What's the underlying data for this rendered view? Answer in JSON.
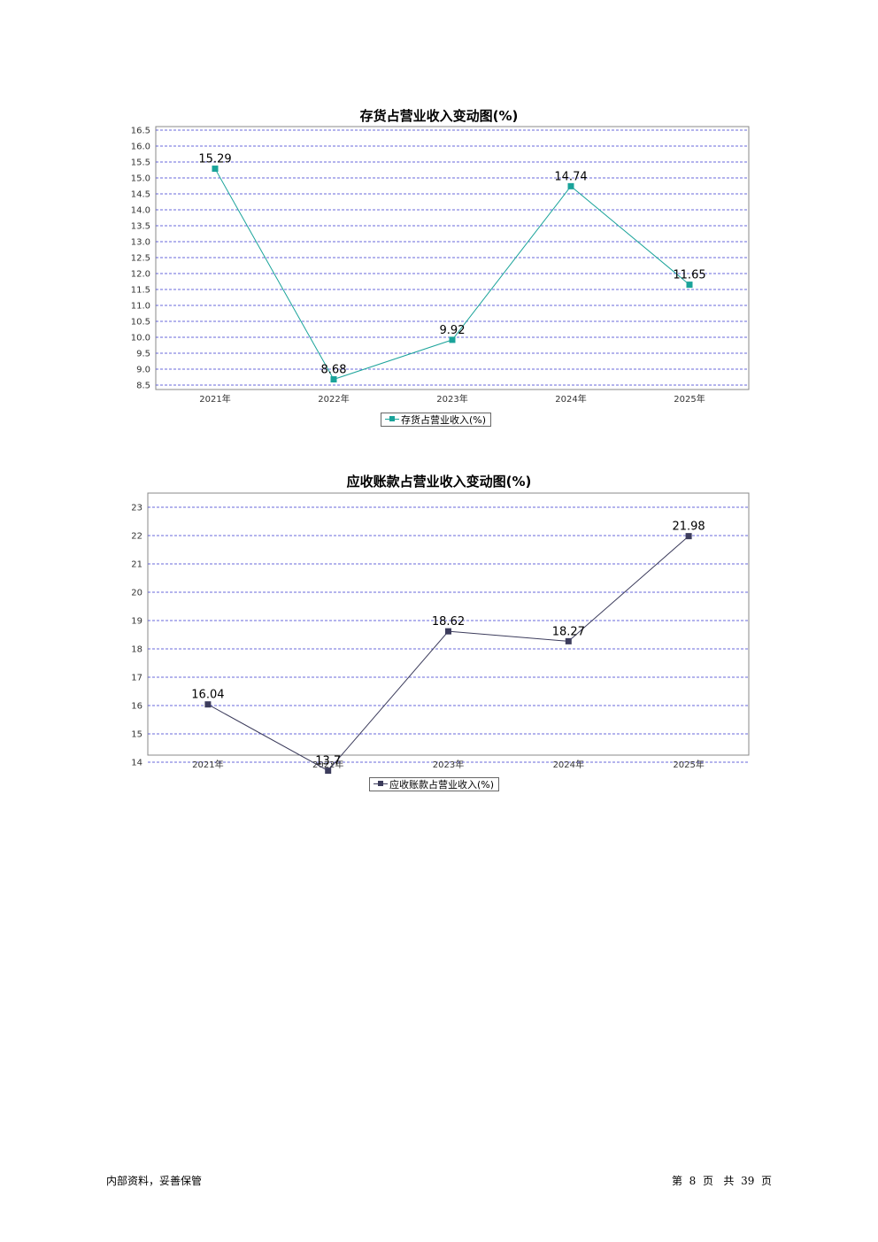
{
  "chart_data": [
    {
      "type": "line",
      "title": "存货占营业收入变动图(%)",
      "categories": [
        "2021年",
        "2022年",
        "2023年",
        "2024年",
        "2025年"
      ],
      "series": [
        {
          "name": "存货占营业收入(%)",
          "values": [
            15.29,
            8.68,
            9.92,
            14.74,
            11.65
          ]
        }
      ],
      "data_labels": [
        "15.29",
        "8.68",
        "9.92",
        "14.74",
        "11.65"
      ],
      "yticks": [
        "8.5",
        "9.0",
        "9.5",
        "10.0",
        "10.5",
        "11.0",
        "11.5",
        "12.0",
        "12.5",
        "13.0",
        "13.5",
        "14.0",
        "14.5",
        "15.0",
        "15.5",
        "16.0",
        "16.5"
      ],
      "ylim": [
        8.5,
        16.5
      ],
      "color": "#1aa39a",
      "grid": true,
      "legend_position": "bottom"
    },
    {
      "type": "line",
      "title": "应收账款占营业收入变动图(%)",
      "categories": [
        "2021年",
        "2022年",
        "2023年",
        "2024年",
        "2025年"
      ],
      "series": [
        {
          "name": "应收账款占营业收入(%)",
          "values": [
            16.04,
            13.7,
            18.62,
            18.27,
            21.98
          ]
        }
      ],
      "data_labels": [
        "16.04",
        "13.7",
        "18.62",
        "18.27",
        "21.98"
      ],
      "yticks": [
        "14",
        "15",
        "16",
        "17",
        "18",
        "19",
        "20",
        "21",
        "22",
        "23"
      ],
      "ylim": [
        14,
        23
      ],
      "color": "#3c3c5c",
      "grid": true,
      "legend_position": "bottom"
    }
  ],
  "footer": {
    "left": "内部资料，妥善保管",
    "page_prefix": "第",
    "page_number": "8",
    "page_unit": "页",
    "total_prefix": "共",
    "total_pages": "39",
    "total_unit": "页"
  }
}
